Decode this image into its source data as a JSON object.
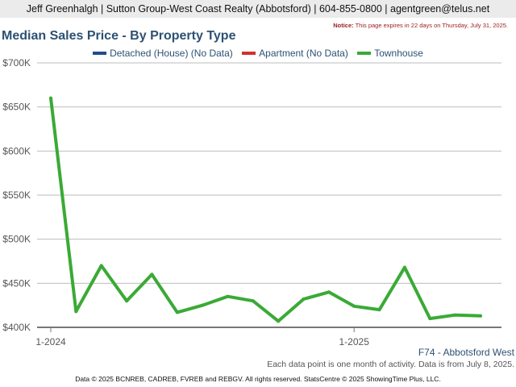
{
  "header": {
    "text": "Jeff Greenhalgh | Sutton Group-West Coast Realty (Abbotsford) | 604-855-0800 | agentgreen@telus.net"
  },
  "notice": {
    "label": "Notice:",
    "text": "This page expires in 22 days on Thursday, July 31, 2025."
  },
  "region": "F74 - Abbotsford West",
  "note": "Each data point is one month of activity. Data is from July 8, 2025.",
  "footer": "Data © 2025 BCNREB, CADREB, FVREB and REBGV. All rights reserved. StatsCentre © 2025 ShowingTime Plus, LLC.",
  "chart_data": {
    "type": "line",
    "title": "Median Sales Price - By Property Type",
    "ylim": [
      400000,
      700000
    ],
    "yticks": [
      {
        "value": 400000,
        "label": "$400K"
      },
      {
        "value": 450000,
        "label": "$450K"
      },
      {
        "value": 500000,
        "label": "$500K"
      },
      {
        "value": 550000,
        "label": "$550K"
      },
      {
        "value": 600000,
        "label": "$600K"
      },
      {
        "value": 650000,
        "label": "$650K"
      },
      {
        "value": 700000,
        "label": "$700K"
      }
    ],
    "x": [
      "2024-01",
      "2024-02",
      "2024-03",
      "2024-04",
      "2024-05",
      "2024-06",
      "2024-07",
      "2024-08",
      "2024-09",
      "2024-10",
      "2024-11",
      "2024-12",
      "2025-01",
      "2025-02",
      "2025-03",
      "2025-04",
      "2025-05",
      "2025-06"
    ],
    "xticks": [
      {
        "index": 0,
        "label": "1-2024"
      },
      {
        "index": 12,
        "label": "1-2025"
      }
    ],
    "grid": true,
    "legend_position": "top",
    "legend": [
      {
        "label": "Detached (House) (No Data)",
        "color": "#1f4e8c"
      },
      {
        "label": "Apartment (No Data)",
        "color": "#d0312d"
      },
      {
        "label": "Townhouse",
        "color": "#3aaa35"
      }
    ],
    "series": [
      {
        "name": "Townhouse",
        "color": "#3aaa35",
        "values": [
          660000,
          418000,
          470000,
          430000,
          460000,
          417000,
          425000,
          435000,
          430000,
          407000,
          432000,
          440000,
          424000,
          420000,
          468000,
          410000,
          414000,
          413000
        ]
      }
    ]
  }
}
